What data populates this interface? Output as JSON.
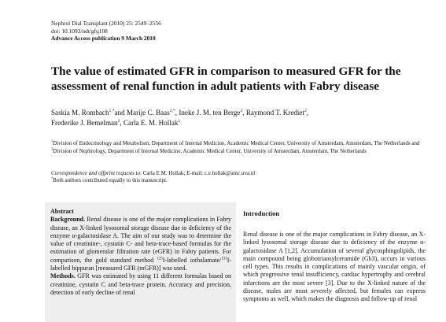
{
  "header": {
    "journal": "Nephrol Dial Transplant (2010) 25: 2549–2556",
    "doi": "doi: 10.1093/ndt/gfq108",
    "advance": "Advance Access publication 9 March 2010"
  },
  "title": "The value of estimated GFR in comparison to measured GFR for the assessment of renal function in adult patients with Fabry disease",
  "authors": [
    {
      "name": "Saskia M. Rombach",
      "sup": "1,*",
      "sep": "and "
    },
    {
      "name": "Marije C. Baas",
      "sup": "2,*",
      "sep": ", "
    },
    {
      "name": "Ineke J. M. ten Berge",
      "sup": "2",
      "sep": ", "
    },
    {
      "name": "Raymond T. Krediet",
      "sup": "2",
      "sep": ","
    },
    {
      "name": "Frederike J. Bemelman",
      "sup": "2",
      "sep": ", "
    },
    {
      "name": "Carla E. M. Hollak",
      "sup": "1",
      "sep": ""
    }
  ],
  "affiliations": {
    "marker1": "1",
    "text1": "Division of Endocrinology and Metabolism, Department of Internal Medicine, Academic Medical Center, University of Amsterdam, Amsterdam, The Netherlands and ",
    "marker2": "2",
    "text2": "Division of Nephrology, Department of Internal Medicine, Academic Medical Center, University of Amsterdam, Amsterdam, The Netherlands"
  },
  "correspondence": {
    "label": "Correspondence and offprint requests to",
    "text": ": Carla E.M. Hollak; E-mail: c.e.hollak@amc.uva.nl",
    "note_marker": "*",
    "note": "Both authors contributed equally to this manuscript."
  },
  "abstract": {
    "heading": "Abstract",
    "background_label": "Background.",
    "background_text_1": " Renal disease is one of the major complications in Fabry disease, an X-linked lysosomal storage disease due to deficiency of the enzyme α-galactosidase A. The aim of our study was to determine the value of creatinine-, cystatin C- and beta-trace-based formulas for the estimation of glomerular filtration rate (eGFR) in Fabry patients. For comparison, the gold standard method ",
    "sup_125": "125",
    "background_text_2": "I-labelled iothalamate/",
    "sup_131": "131",
    "background_text_3": "I-labelled hippuran [measured GFR (mGFR)] was used.",
    "methods_label": "Methods.",
    "methods_text": " GFR was estimated by using 11 different formulas based on creatinine, cystatin C and beta-trace protein. Accuracy and precision, detection of early decline of renal"
  },
  "introduction": {
    "heading": "Introduction",
    "text": "Renal disease is one of the major complications in Fabry disease, an X-linked lysosomal storage disease due to deficiency of the enzyme α-galactosidase A [1,2]. Accumulation of several glycosphingolipids, the main compound being globotriaosylceramide (Gb3), occurs in various cell types. This results in complications of mainly vascular origin, of which progressive renal insufficiency, cardiac hypertrophy and cerebral infarctions are the most severe [3]. Due to the X-linked nature of the disease, males are most severely affected, but females can express symptoms as well, which makes the diagnosis and follow-up of renal"
  }
}
